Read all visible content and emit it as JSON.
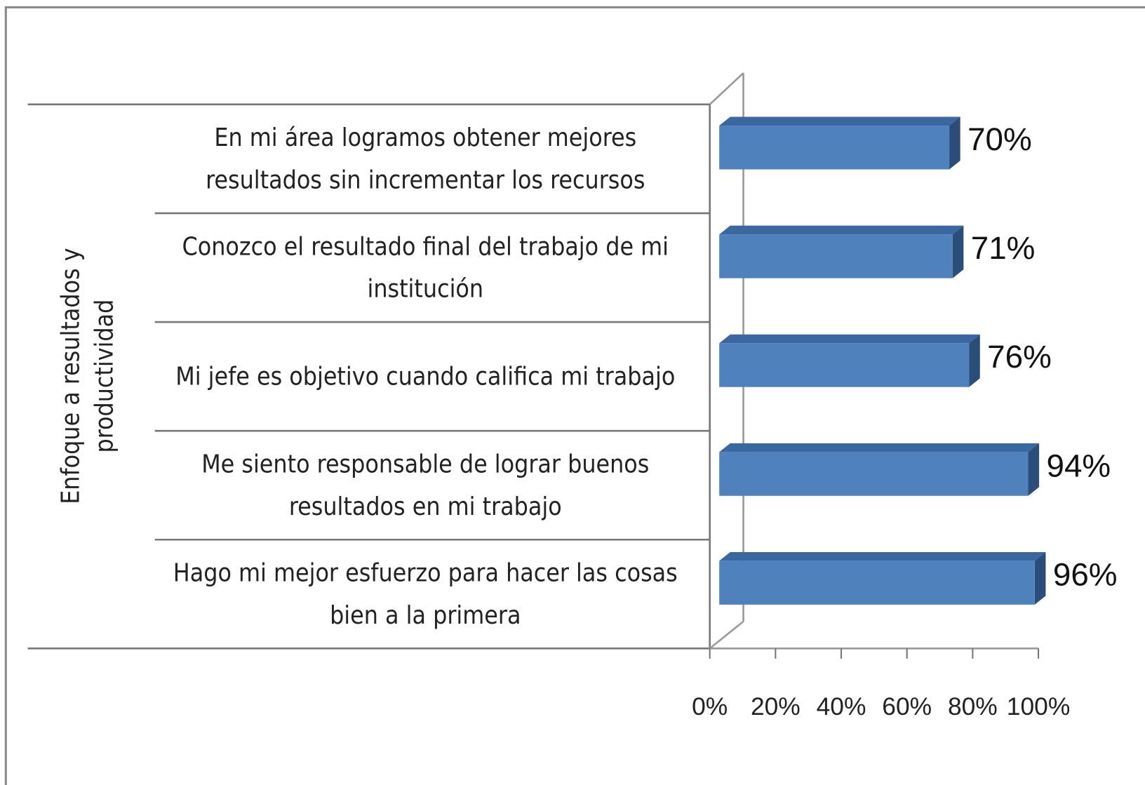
{
  "chart_data": {
    "type": "bar3d_horizontal",
    "axis_group_label": "Enfoque a resultados y productividad",
    "categories": [
      "En mi área logramos obtener mejores resultados sin incrementar los recursos",
      "Conozco el resultado final del trabajo de mi institución",
      "Mi jefe es objetivo cuando califica mi trabajo",
      "Me siento responsable de lograr buenos resultados en mi trabajo",
      "Hago mi mejor esfuerzo para hacer las cosas bien a la primera"
    ],
    "values": [
      70,
      71,
      76,
      94,
      96
    ],
    "value_labels": [
      "70%",
      "71%",
      "76%",
      "94%",
      "96%"
    ],
    "color": "#4f81bd",
    "xlim": [
      0,
      100
    ],
    "xticks": [
      {
        "value": 0,
        "label": "0%"
      },
      {
        "value": 20,
        "label": "20%"
      },
      {
        "value": 40,
        "label": "40%"
      },
      {
        "value": 60,
        "label": "60%"
      },
      {
        "value": 80,
        "label": "80%"
      },
      {
        "value": 100,
        "label": "100%"
      }
    ]
  }
}
